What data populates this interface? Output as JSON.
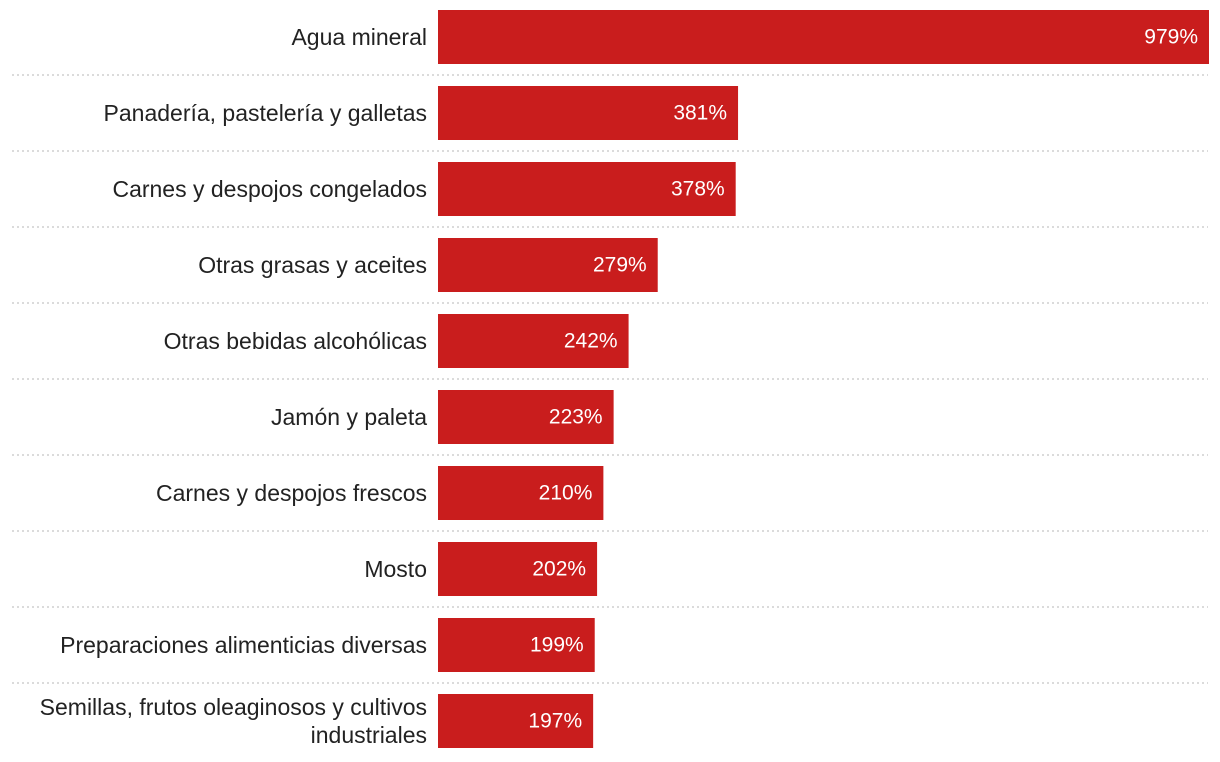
{
  "chart_data": {
    "type": "bar",
    "orientation": "horizontal",
    "title": "",
    "xlabel": "",
    "ylabel": "",
    "value_suffix": "%",
    "xlim": [
      0,
      979
    ],
    "grid": false,
    "bar_color": "#c91d1d",
    "label_color": "#ffffff",
    "categories": [
      [
        "Agua mineral"
      ],
      [
        "Panadería, pastelería y galletas"
      ],
      [
        "Carnes y despojos congelados"
      ],
      [
        "Otras grasas y aceites"
      ],
      [
        "Otras bebidas alcohólicas"
      ],
      [
        "Jamón y paleta"
      ],
      [
        "Carnes y despojos frescos"
      ],
      [
        "Mosto"
      ],
      [
        "Preparaciones alimenticias diversas"
      ],
      [
        "Semillas, frutos oleaginosos y cultivos",
        "industriales"
      ]
    ],
    "values": [
      979,
      381,
      378,
      279,
      242,
      223,
      210,
      202,
      199,
      197
    ],
    "value_labels": [
      "979%",
      "381%",
      "378%",
      "279%",
      "242%",
      "223%",
      "210%",
      "202%",
      "199%",
      "197%"
    ]
  }
}
